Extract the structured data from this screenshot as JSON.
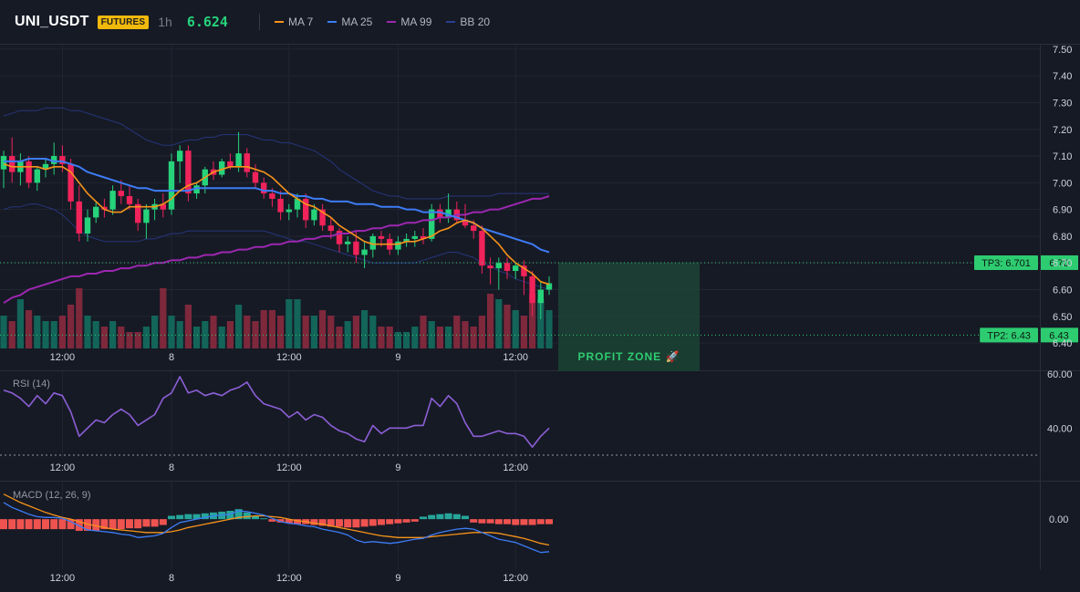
{
  "header": {
    "symbol": "UNI_USDT",
    "badge": "FUTURES",
    "interval": "1h",
    "last_price": "6.624",
    "legend": [
      {
        "label": "MA 7",
        "color": "#f7931a"
      },
      {
        "label": "MA 25",
        "color": "#3d7cf5"
      },
      {
        "label": "MA 99",
        "color": "#9c27b0"
      },
      {
        "label": "BB 20",
        "color": "#2a3f8f"
      }
    ]
  },
  "colors": {
    "up": "#26d27a",
    "down": "#f0235a",
    "vol_up": "#136d5f",
    "vol_down": "#8a2a3f",
    "rsi": "#8c5fd6",
    "macd": "#3d7cf5",
    "signal": "#f7931a",
    "hist_up": "#26a69a",
    "hist_down": "#ef5350",
    "zone": "#2ecc71"
  },
  "chart_data": {
    "type": "candlestick",
    "x_ticks": [
      "12:00",
      "8",
      "12:00",
      "9",
      "12:00"
    ],
    "price_axis": {
      "ticks": [
        "7.50",
        "7.40",
        "7.30",
        "7.20",
        "7.10",
        "7.00",
        "6.90",
        "6.80",
        "6.70",
        "6.60",
        "6.50",
        "6.40"
      ],
      "ylim": [
        6.38,
        7.52
      ]
    },
    "candles": [
      [
        7.05,
        7.12,
        6.98,
        7.1
      ],
      [
        7.1,
        7.17,
        7.0,
        7.04
      ],
      [
        7.04,
        7.11,
        6.99,
        7.08
      ],
      [
        7.08,
        7.1,
        6.98,
        7.0
      ],
      [
        7.0,
        7.06,
        6.97,
        7.05
      ],
      [
        7.05,
        7.09,
        7.02,
        7.07
      ],
      [
        7.07,
        7.15,
        7.03,
        7.1
      ],
      [
        7.1,
        7.14,
        7.04,
        7.07
      ],
      [
        7.07,
        7.09,
        6.9,
        6.93
      ],
      [
        6.93,
        6.99,
        6.78,
        6.81
      ],
      [
        6.81,
        6.9,
        6.78,
        6.87
      ],
      [
        6.87,
        6.93,
        6.85,
        6.91
      ],
      [
        6.91,
        6.94,
        6.87,
        6.9
      ],
      [
        6.9,
        6.99,
        6.88,
        6.97
      ],
      [
        6.97,
        7.01,
        6.92,
        6.95
      ],
      [
        6.95,
        6.99,
        6.9,
        6.92
      ],
      [
        6.92,
        6.94,
        6.82,
        6.85
      ],
      [
        6.85,
        6.92,
        6.79,
        6.9
      ],
      [
        6.9,
        6.94,
        6.86,
        6.92
      ],
      [
        6.92,
        6.96,
        6.87,
        6.9
      ],
      [
        6.9,
        7.11,
        6.88,
        7.08
      ],
      [
        7.08,
        7.14,
        7.0,
        7.12
      ],
      [
        7.12,
        7.14,
        6.93,
        6.96
      ],
      [
        6.96,
        7.0,
        6.94,
        6.99
      ],
      [
        6.99,
        7.06,
        6.96,
        7.05
      ],
      [
        7.05,
        7.08,
        7.01,
        7.03
      ],
      [
        7.03,
        7.09,
        7.02,
        7.08
      ],
      [
        7.08,
        7.11,
        7.05,
        7.06
      ],
      [
        7.06,
        7.19,
        7.04,
        7.11
      ],
      [
        7.11,
        7.13,
        7.02,
        7.04
      ],
      [
        7.04,
        7.07,
        6.98,
        7.0
      ],
      [
        7.0,
        7.02,
        6.94,
        6.96
      ],
      [
        6.96,
        6.98,
        6.91,
        6.94
      ],
      [
        6.94,
        6.97,
        6.86,
        6.89
      ],
      [
        6.89,
        6.92,
        6.86,
        6.9
      ],
      [
        6.9,
        6.96,
        6.87,
        6.94
      ],
      [
        6.94,
        6.96,
        6.83,
        6.86
      ],
      [
        6.86,
        6.92,
        6.84,
        6.9
      ],
      [
        6.9,
        6.92,
        6.82,
        6.84
      ],
      [
        6.84,
        6.87,
        6.79,
        6.82
      ],
      [
        6.82,
        6.83,
        6.74,
        6.77
      ],
      [
        6.77,
        6.8,
        6.74,
        6.78
      ],
      [
        6.78,
        6.82,
        6.7,
        6.73
      ],
      [
        6.73,
        6.78,
        6.68,
        6.75
      ],
      [
        6.75,
        6.81,
        6.72,
        6.8
      ],
      [
        6.8,
        6.82,
        6.76,
        6.79
      ],
      [
        6.79,
        6.81,
        6.73,
        6.75
      ],
      [
        6.75,
        6.8,
        6.73,
        6.78
      ],
      [
        6.78,
        6.81,
        6.76,
        6.79
      ],
      [
        6.79,
        6.82,
        6.76,
        6.8
      ],
      [
        6.8,
        6.83,
        6.77,
        6.79
      ],
      [
        6.79,
        6.92,
        6.78,
        6.9
      ],
      [
        6.9,
        6.92,
        6.85,
        6.87
      ],
      [
        6.87,
        6.96,
        6.85,
        6.9
      ],
      [
        6.9,
        6.93,
        6.85,
        6.86
      ],
      [
        6.86,
        6.92,
        6.83,
        6.84
      ],
      [
        6.84,
        6.86,
        6.79,
        6.82
      ],
      [
        6.82,
        6.84,
        6.66,
        6.69
      ],
      [
        6.69,
        6.72,
        6.62,
        6.68
      ],
      [
        6.68,
        6.72,
        6.6,
        6.7
      ],
      [
        6.7,
        6.72,
        6.64,
        6.67
      ],
      [
        6.67,
        6.7,
        6.64,
        6.69
      ],
      [
        6.69,
        6.71,
        6.58,
        6.65
      ],
      [
        6.65,
        6.67,
        6.5,
        6.55
      ],
      [
        6.55,
        6.63,
        6.49,
        6.6
      ],
      [
        6.6,
        6.65,
        6.58,
        6.624
      ]
    ],
    "volume": [
      6,
      5,
      9,
      7,
      6,
      5,
      5,
      6,
      8,
      11,
      6,
      5,
      4,
      5,
      4,
      3,
      3,
      4,
      6,
      11,
      6,
      5,
      8,
      4,
      5,
      6,
      4,
      5,
      8,
      6,
      5,
      7,
      7,
      6,
      9,
      9,
      6,
      6,
      7,
      6,
      4,
      5,
      6,
      7,
      6,
      4,
      4,
      3,
      3,
      4,
      6,
      5,
      4,
      4,
      6,
      5,
      4,
      6,
      10,
      9,
      8,
      7,
      6,
      10,
      9,
      7
    ],
    "ma7": [
      7.07,
      7.06,
      7.06,
      7.06,
      7.06,
      7.05,
      7.06,
      7.06,
      7.04,
      7.0,
      6.96,
      6.93,
      6.9,
      6.89,
      6.89,
      6.91,
      6.91,
      6.91,
      6.91,
      6.92,
      6.94,
      6.97,
      6.99,
      7.0,
      7.02,
      7.04,
      7.05,
      7.06,
      7.06,
      7.06,
      7.05,
      7.04,
      7.02,
      6.99,
      6.96,
      6.94,
      6.92,
      6.91,
      6.89,
      6.87,
      6.84,
      6.82,
      6.8,
      6.78,
      6.77,
      6.77,
      6.77,
      6.77,
      6.78,
      6.78,
      6.79,
      6.8,
      6.82,
      6.83,
      6.85,
      6.86,
      6.85,
      6.83,
      6.8,
      6.77,
      6.73,
      6.7,
      6.68,
      6.66,
      6.63,
      6.62
    ],
    "ma25": [
      7.08,
      7.08,
      7.08,
      7.09,
      7.09,
      7.09,
      7.08,
      7.08,
      7.07,
      7.06,
      7.04,
      7.03,
      7.02,
      7.01,
      7.0,
      6.99,
      6.98,
      6.98,
      6.97,
      6.97,
      6.97,
      6.97,
      6.97,
      6.98,
      6.98,
      6.98,
      6.98,
      6.98,
      6.98,
      6.98,
      6.98,
      6.97,
      6.97,
      6.96,
      6.96,
      6.95,
      6.95,
      6.94,
      6.94,
      6.93,
      6.93,
      6.93,
      6.92,
      6.92,
      6.92,
      6.91,
      6.91,
      6.91,
      6.9,
      6.9,
      6.89,
      6.89,
      6.89,
      6.88,
      6.87,
      6.86,
      6.85,
      6.83,
      6.82,
      6.81,
      6.8,
      6.79,
      6.78,
      6.77,
      6.75,
      6.74
    ],
    "ma99": [
      6.55,
      6.57,
      6.58,
      6.6,
      6.61,
      6.62,
      6.63,
      6.64,
      6.65,
      6.65,
      6.66,
      6.66,
      6.67,
      6.67,
      6.68,
      6.68,
      6.69,
      6.69,
      6.7,
      6.7,
      6.71,
      6.71,
      6.72,
      6.72,
      6.73,
      6.73,
      6.74,
      6.74,
      6.75,
      6.75,
      6.76,
      6.76,
      6.77,
      6.77,
      6.78,
      6.78,
      6.79,
      6.79,
      6.8,
      6.8,
      6.81,
      6.81,
      6.82,
      6.82,
      6.83,
      6.83,
      6.84,
      6.84,
      6.85,
      6.85,
      6.86,
      6.86,
      6.87,
      6.87,
      6.88,
      6.88,
      6.89,
      6.89,
      6.9,
      6.9,
      6.91,
      6.92,
      6.93,
      6.94,
      6.94,
      6.95
    ],
    "bb_upper": [
      7.25,
      7.26,
      7.27,
      7.27,
      7.27,
      7.28,
      7.28,
      7.28,
      7.27,
      7.27,
      7.26,
      7.25,
      7.24,
      7.23,
      7.22,
      7.2,
      7.18,
      7.16,
      7.15,
      7.14,
      7.14,
      7.15,
      7.16,
      7.16,
      7.17,
      7.17,
      7.18,
      7.18,
      7.18,
      7.18,
      7.17,
      7.16,
      7.16,
      7.15,
      7.15,
      7.14,
      7.13,
      7.12,
      7.1,
      7.08,
      7.05,
      7.03,
      7.01,
      6.99,
      6.97,
      6.96,
      6.95,
      6.95,
      6.94,
      6.94,
      6.94,
      6.94,
      6.94,
      6.95,
      6.95,
      6.95,
      6.95,
      6.95,
      6.95,
      6.96,
      6.96,
      6.96,
      6.96,
      6.96,
      6.96,
      6.96
    ],
    "bb_lower": [
      6.9,
      6.91,
      6.91,
      6.92,
      6.92,
      6.91,
      6.9,
      6.88,
      6.85,
      6.82,
      6.8,
      6.79,
      6.78,
      6.78,
      6.78,
      6.78,
      6.78,
      6.79,
      6.79,
      6.8,
      6.81,
      6.81,
      6.82,
      6.82,
      6.82,
      6.82,
      6.82,
      6.82,
      6.82,
      6.82,
      6.82,
      6.82,
      6.81,
      6.8,
      6.79,
      6.78,
      6.78,
      6.77,
      6.76,
      6.75,
      6.74,
      6.73,
      6.72,
      6.71,
      6.7,
      6.7,
      6.7,
      6.7,
      6.7,
      6.7,
      6.71,
      6.72,
      6.73,
      6.74,
      6.74,
      6.73,
      6.72,
      6.7,
      6.69,
      6.67,
      6.66,
      6.64,
      6.63,
      6.62,
      6.61,
      6.6
    ],
    "targets": [
      {
        "label": "TP3: 6.701",
        "price": 6.701,
        "axis_label": "6.70"
      },
      {
        "label": "TP2: 6.43",
        "price": 6.43,
        "axis_label": "6.43"
      }
    ],
    "profit_zone": {
      "label": "PROFIT ZONE 🚀",
      "top": 6.701,
      "bottom": 6.43
    },
    "rsi": {
      "label": "RSI (14)",
      "ticks": [
        "60.00",
        "40.00"
      ],
      "ylim": [
        29,
        61
      ],
      "values": [
        54,
        53,
        51,
        48,
        52,
        49,
        53,
        52,
        46,
        37,
        40,
        43,
        42,
        45,
        47,
        45,
        41,
        43,
        45,
        51,
        53,
        59,
        53,
        54,
        52,
        53,
        52,
        54,
        55,
        57,
        52,
        49,
        48,
        47,
        44,
        46,
        43,
        45,
        44,
        41,
        39,
        38,
        36,
        35,
        41,
        38,
        40,
        40,
        40,
        41,
        41,
        51,
        48,
        52,
        49,
        42,
        37,
        37,
        38,
        39,
        38,
        38,
        37,
        33,
        37,
        40
      ]
    },
    "macd": {
      "label": "MACD (12, 26, 9)",
      "ticks": [
        "0.00"
      ],
      "ylim": [
        -0.06,
        0.045
      ],
      "macd_line": [
        0.02,
        0.014,
        0.01,
        0.006,
        0.003,
        0.002,
        0.002,
        0.001,
        -0.003,
        -0.008,
        -0.013,
        -0.014,
        -0.015,
        -0.016,
        -0.018,
        -0.019,
        -0.022,
        -0.021,
        -0.02,
        -0.017,
        -0.01,
        -0.004,
        -0.002,
        0.0,
        0.002,
        0.004,
        0.005,
        0.006,
        0.01,
        0.009,
        0.007,
        0.005,
        0.001,
        -0.003,
        -0.005,
        -0.006,
        -0.008,
        -0.009,
        -0.012,
        -0.014,
        -0.016,
        -0.019,
        -0.025,
        -0.028,
        -0.027,
        -0.028,
        -0.029,
        -0.028,
        -0.026,
        -0.024,
        -0.023,
        -0.019,
        -0.016,
        -0.014,
        -0.012,
        -0.011,
        -0.012,
        -0.016,
        -0.02,
        -0.024,
        -0.026,
        -0.028,
        -0.032,
        -0.036,
        -0.04,
        -0.039
      ],
      "signal_line": [
        0.03,
        0.025,
        0.02,
        0.016,
        0.012,
        0.008,
        0.005,
        0.002,
        0.0,
        -0.003,
        -0.006,
        -0.008,
        -0.01,
        -0.012,
        -0.013,
        -0.014,
        -0.015,
        -0.016,
        -0.016,
        -0.016,
        -0.015,
        -0.013,
        -0.01,
        -0.008,
        -0.006,
        -0.004,
        -0.002,
        0.0,
        0.002,
        0.003,
        0.004,
        0.004,
        0.003,
        0.002,
        0.0,
        -0.002,
        -0.003,
        -0.005,
        -0.006,
        -0.008,
        -0.01,
        -0.012,
        -0.014,
        -0.016,
        -0.018,
        -0.02,
        -0.021,
        -0.022,
        -0.022,
        -0.022,
        -0.022,
        -0.021,
        -0.02,
        -0.019,
        -0.018,
        -0.017,
        -0.016,
        -0.016,
        -0.016,
        -0.017,
        -0.019,
        -0.021,
        -0.023,
        -0.026,
        -0.029,
        -0.031
      ],
      "histogram": [
        -0.012,
        -0.012,
        -0.012,
        -0.012,
        -0.012,
        -0.012,
        -0.012,
        -0.012,
        -0.012,
        -0.014,
        -0.014,
        -0.014,
        -0.012,
        -0.012,
        -0.012,
        -0.011,
        -0.011,
        -0.009,
        -0.009,
        -0.007,
        0.004,
        0.005,
        0.006,
        0.006,
        0.007,
        0.008,
        0.009,
        0.01,
        0.012,
        0.008,
        0.004,
        0.001,
        -0.003,
        -0.004,
        -0.005,
        -0.006,
        -0.006,
        -0.007,
        -0.008,
        -0.009,
        -0.009,
        -0.01,
        -0.01,
        -0.009,
        -0.008,
        -0.007,
        -0.006,
        -0.005,
        -0.004,
        -0.003,
        0.003,
        0.005,
        0.006,
        0.007,
        0.006,
        0.004,
        -0.004,
        -0.005,
        -0.005,
        -0.006,
        -0.006,
        -0.007,
        -0.007,
        -0.007,
        -0.006,
        -0.006
      ]
    }
  }
}
